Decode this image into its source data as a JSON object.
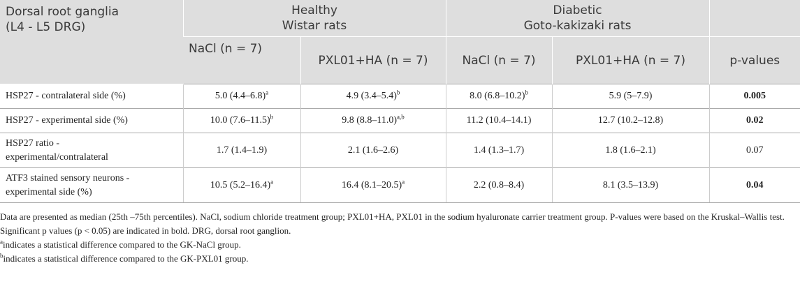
{
  "table": {
    "header": {
      "corner": [
        "Dorsal root ganglia",
        "(L4 - L5 DRG)"
      ],
      "groups": [
        [
          "Healthy",
          "Wistar rats"
        ],
        [
          "Diabetic",
          "Goto-kakizaki rats"
        ]
      ],
      "columns": [
        "NaCl (n = 7)",
        "PXL01+HA (n = 7)",
        "NaCl (n = 7)",
        "PXL01+HA (n = 7)",
        "p-values"
      ]
    },
    "rows": [
      {
        "label": [
          "HSP27 - contralateral side (%)"
        ],
        "cells": [
          {
            "text": "5.0 (4.4–6.8)",
            "sup": "a"
          },
          {
            "text": "4.9 (3.4–5.4)",
            "sup": "b"
          },
          {
            "text": "8.0 (6.8–10.2)",
            "sup": "b"
          },
          {
            "text": "5.9 (5–7.9)"
          }
        ],
        "p": {
          "text": "0.005",
          "bold": true
        }
      },
      {
        "label": [
          "HSP27 - experimental side (%)"
        ],
        "cells": [
          {
            "text": "10.0 (7.6–11.5)",
            "sup": "b"
          },
          {
            "text": "9.8 (8.8–11.0)",
            "sup": "a,b"
          },
          {
            "text": "11.2 (10.4–14.1)"
          },
          {
            "text": "12.7 (10.2–12.8)"
          }
        ],
        "p": {
          "text": "0.02",
          "bold": true
        }
      },
      {
        "label": [
          "HSP27 ratio -",
          "experimental/contralateral"
        ],
        "cells": [
          {
            "text": "1.7 (1.4–1.9)"
          },
          {
            "text": "2.1 (1.6–2.6)"
          },
          {
            "text": "1.4 (1.3–1.7)"
          },
          {
            "text": "1.8 (1.6–2.1)"
          }
        ],
        "p": {
          "text": "0.07",
          "bold": false
        }
      },
      {
        "label": [
          "ATF3 stained sensory neurons -",
          "experimental side (%)"
        ],
        "cells": [
          {
            "text": "10.5 (5.2–16.4)",
            "sup": "a"
          },
          {
            "text": "16.4 (8.1–20.5)",
            "sup": "a"
          },
          {
            "text": "2.2 (0.8–8.4)"
          },
          {
            "text": "8.1 (3.5–13.9)"
          }
        ],
        "p": {
          "text": "0.04",
          "bold": true
        }
      }
    ]
  },
  "notes": {
    "text": "Data are presented as median (25th –75th percentiles). NaCl, sodium chloride treatment group; PXL01+HA, PXL01 in the sodium hyaluronate carrier treatment group. P-values were based on the Kruskal–Wallis test. Significant p values (p < 0.05) are indicated in bold. DRG, dorsal root ganglion.",
    "footnotes": [
      {
        "mark": "a",
        "text": "indicates a statistical difference compared to the GK-NaCl group."
      },
      {
        "mark": "b",
        "text": "indicates a statistical difference compared to the GK-PXL01 group."
      }
    ]
  }
}
